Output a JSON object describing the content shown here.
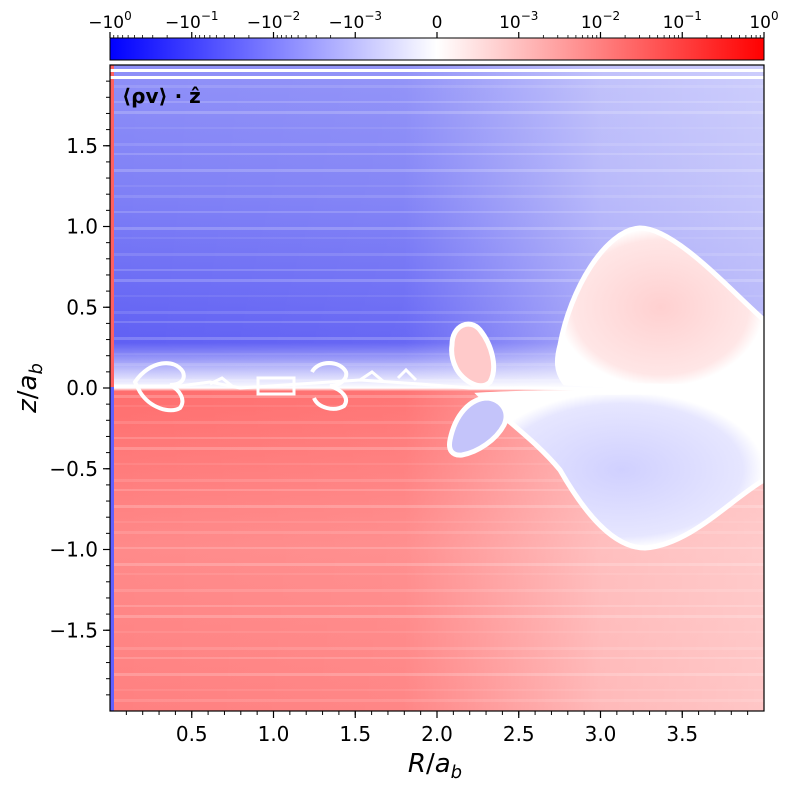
{
  "chart_data": {
    "type": "heatmap",
    "title": "",
    "annotation": "⟨ρv⟩ · ẑ",
    "xlabel": "R/a_b",
    "ylabel": "z/a_b",
    "xlim": [
      0.0,
      4.0
    ],
    "ylim": [
      -2.0,
      2.0
    ],
    "x_ticks": [
      0.5,
      1.0,
      1.5,
      2.0,
      2.5,
      3.0,
      3.5
    ],
    "x_tick_labels": [
      "0.5",
      "1.0",
      "1.5",
      "2.0",
      "2.5",
      "3.0",
      "3.5"
    ],
    "y_ticks": [
      1.5,
      1.0,
      0.5,
      0.0,
      -0.5,
      -1.0,
      -1.5
    ],
    "y_tick_labels": [
      "1.5",
      "1.0",
      "0.5",
      "0.0",
      "−0.5",
      "−1.0",
      "−1.5"
    ],
    "grid": false,
    "colorbar": {
      "position": "top",
      "scale": "symlog",
      "colormap": "bwr",
      "range": [
        -1,
        1
      ],
      "ticks": [
        -1,
        -0.1,
        -0.01,
        -0.001,
        0,
        0.001,
        0.01,
        0.1,
        1
      ],
      "tick_labels": [
        {
          "base": "−10",
          "exp": "0"
        },
        {
          "base": "−10",
          "exp": "−1"
        },
        {
          "base": "−10",
          "exp": "−2"
        },
        {
          "base": "−10",
          "exp": "−3"
        },
        {
          "base": "0",
          "exp": ""
        },
        {
          "base": "10",
          "exp": "−3"
        },
        {
          "base": "10",
          "exp": "−2"
        },
        {
          "base": "10",
          "exp": "−1"
        },
        {
          "base": "10",
          "exp": "0"
        }
      ],
      "colors": {
        "negative": "#0000ff",
        "zero": "#ffffff",
        "positive": "#ff0000"
      }
    },
    "regions": [
      {
        "description": "upper half, z > 0",
        "sign": "negative",
        "approx_value": -0.03
      },
      {
        "description": "lower half, z < 0",
        "sign": "positive",
        "approx_value": 0.03
      },
      {
        "description": "large lobe near R=3.3, z=0.4",
        "sign": "positive",
        "approx_value": 0.001
      },
      {
        "description": "large lobe near R=3.3, z=-0.4",
        "sign": "negative",
        "approx_value": -0.001
      },
      {
        "description": "small lobe near R=2.2, z=0.25",
        "sign": "positive",
        "approx_value": 0.005
      },
      {
        "description": "small lobe near R=2.25, z=-0.25",
        "sign": "negative",
        "approx_value": -0.005
      }
    ]
  }
}
